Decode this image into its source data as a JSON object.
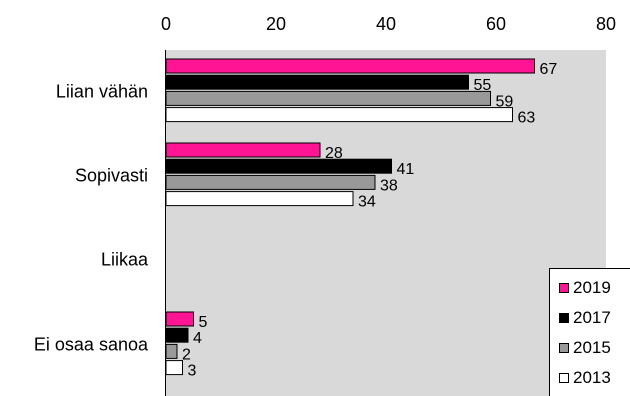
{
  "chart_data": {
    "type": "bar",
    "orientation": "horizontal",
    "title": "",
    "xlabel": "",
    "ylabel": "",
    "categories": [
      "Liian vähän",
      "Sopivasti",
      "Liikaa",
      "Ei osaa sanoa"
    ],
    "series": [
      {
        "name": "2019",
        "color": "#ff1493",
        "values": [
          67,
          28,
          0,
          5
        ]
      },
      {
        "name": "2017",
        "color": "#000000",
        "values": [
          55,
          41,
          0,
          4
        ]
      },
      {
        "name": "2015",
        "color": "#999999",
        "values": [
          59,
          38,
          0,
          2
        ]
      },
      {
        "name": "2013",
        "color": "#ffffff",
        "values": [
          63,
          34,
          0,
          3
        ]
      }
    ],
    "data_labels": [
      [
        "67",
        "55",
        "59",
        "63"
      ],
      [
        "28",
        "41",
        "38",
        "34"
      ],
      [
        "",
        "",
        "",
        ""
      ],
      [
        "5",
        "4",
        "2",
        "3"
      ]
    ],
    "xlim": [
      0,
      80
    ],
    "xticks": [
      "0",
      "20",
      "40",
      "60",
      "80"
    ],
    "x_axis_position": "top",
    "grid": false,
    "plot_background": "#d9d9d9",
    "legend": {
      "position": "bottom-right",
      "order": [
        "2019",
        "2017",
        "2015",
        "2013"
      ]
    }
  }
}
